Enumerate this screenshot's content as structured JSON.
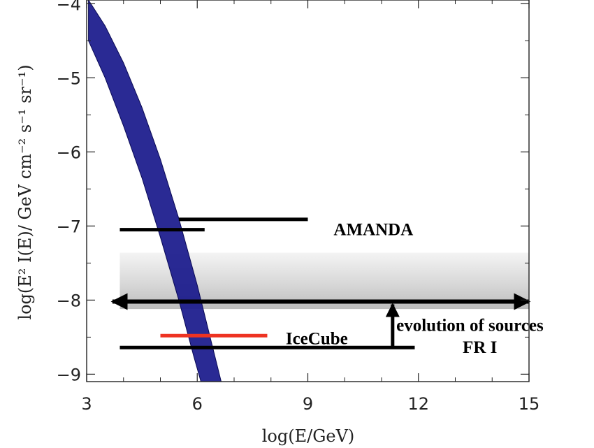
{
  "chart_data": {
    "type": "line",
    "xlabel": "log(E/GeV)",
    "ylabel": "log(E² I(E)/ GeV cm⁻² s⁻¹ sr⁻¹)",
    "xlim": [
      3,
      15
    ],
    "ylim": [
      -9.1,
      -3.95
    ],
    "xticks": [
      3,
      6,
      9,
      12,
      15
    ],
    "yticks": [
      -4,
      -5,
      -6,
      -7,
      -8,
      -9
    ],
    "xtick_labels": [
      "3",
      "6",
      "9",
      "12",
      "15"
    ],
    "ytick_labels": [
      "−4",
      "−5",
      "−6",
      "−7",
      "−8",
      "−9"
    ],
    "grid": false,
    "atmospheric_band": {
      "color": "#1a1a8c",
      "upper": [
        [
          3.05,
          -3.95
        ],
        [
          3.5,
          -4.3
        ],
        [
          4.0,
          -4.8
        ],
        [
          4.5,
          -5.4
        ],
        [
          5.0,
          -6.1
        ],
        [
          5.5,
          -6.9
        ],
        [
          6.0,
          -7.8
        ],
        [
          6.5,
          -8.8
        ],
        [
          6.65,
          -9.1
        ]
      ],
      "lower": [
        [
          3.05,
          -4.5
        ],
        [
          3.5,
          -5.0
        ],
        [
          4.0,
          -5.65
        ],
        [
          4.5,
          -6.35
        ],
        [
          5.0,
          -7.15
        ],
        [
          5.5,
          -8.0
        ],
        [
          5.9,
          -8.75
        ],
        [
          6.1,
          -9.1
        ]
      ]
    },
    "limits": [
      {
        "x": [
          5.5,
          9.0
        ],
        "y": -6.91,
        "color": "#000000"
      },
      {
        "x": [
          3.9,
          6.2
        ],
        "y": -7.05,
        "color": "#000000"
      },
      {
        "x": [
          5.0,
          7.9
        ],
        "y": -8.48,
        "color": "#ee3322"
      },
      {
        "x": [
          3.9,
          11.9
        ],
        "y": -8.64,
        "color": "#000000"
      }
    ],
    "prediction_band": {
      "x": [
        3.9,
        15.0
      ],
      "y": [
        -8.12,
        -7.36
      ],
      "color": "#c8c8c8"
    },
    "evolution_arrow": {
      "x": [
        3.7,
        15.0
      ],
      "y": -8.02,
      "vertical_x": 11.3,
      "vertical_y": [
        -8.64,
        -8.02
      ]
    },
    "annotations": [
      {
        "text": "AMANDA",
        "x": 9.7,
        "y": -7.05
      },
      {
        "text": "IceCube",
        "x": 8.4,
        "y": -8.52
      },
      {
        "text": "evolution of sources",
        "x": 11.4,
        "y": -8.34
      },
      {
        "text": "FR I",
        "x": 13.2,
        "y": -8.64
      }
    ]
  }
}
